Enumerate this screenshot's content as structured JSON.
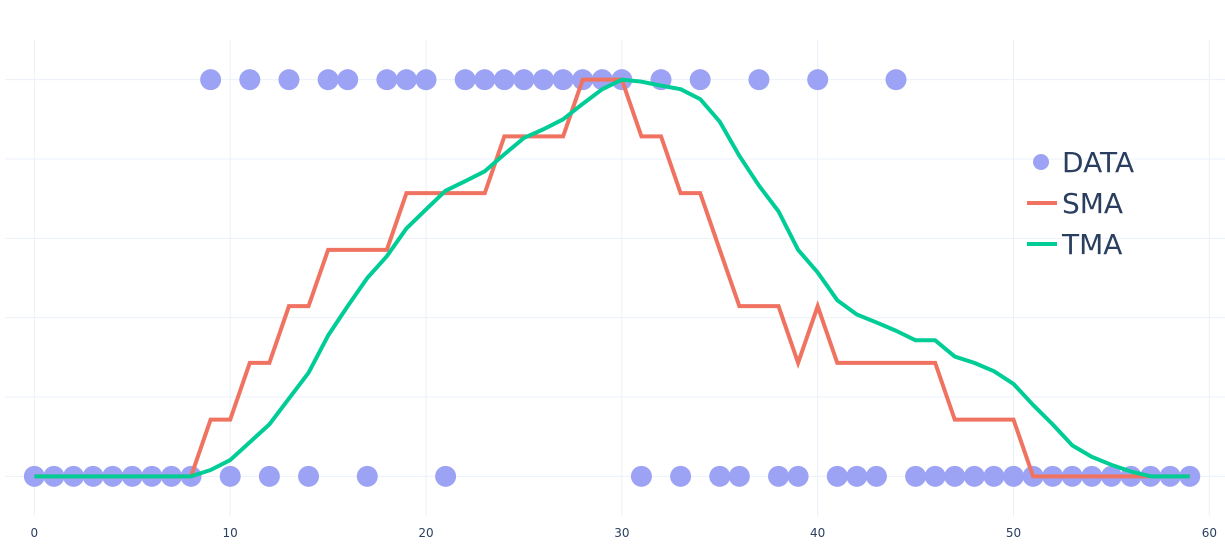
{
  "chart_data": {
    "type": "scatter",
    "xlim": [
      -1.5,
      60.8
    ],
    "ylim": [
      -0.1,
      1.1
    ],
    "x_ticks": [
      0,
      10,
      20,
      30,
      40,
      50,
      60
    ],
    "y_gridlines": [
      0,
      0.2,
      0.4,
      0.6,
      0.8,
      1.0
    ],
    "grid": true,
    "legend_position": "right",
    "colors": {
      "DATA": "#9da3f4",
      "SMA": "#ef7360",
      "TMA": "#00cc96",
      "axis_text": "#2a3f5f",
      "grid": "#ebf0f8"
    },
    "series": [
      {
        "name": "DATA",
        "mode": "markers",
        "x": [
          0,
          1,
          2,
          3,
          4,
          5,
          6,
          7,
          8,
          9,
          10,
          11,
          12,
          13,
          14,
          15,
          16,
          17,
          18,
          19,
          20,
          21,
          22,
          23,
          24,
          25,
          26,
          27,
          28,
          29,
          30,
          31,
          32,
          33,
          34,
          35,
          36,
          37,
          38,
          39,
          40,
          41,
          42,
          43,
          44,
          45,
          46,
          47,
          48,
          49,
          50,
          51,
          52,
          53,
          54,
          55,
          56,
          57,
          58,
          59
        ],
        "y": [
          0,
          0,
          0,
          0,
          0,
          0,
          0,
          0,
          0,
          1,
          0,
          1,
          0,
          1,
          0,
          1,
          1,
          0,
          1,
          1,
          1,
          0,
          1,
          1,
          1,
          1,
          1,
          1,
          1,
          1,
          1,
          0,
          1,
          0,
          1,
          0,
          0,
          1,
          0,
          0,
          1,
          0,
          0,
          0,
          1,
          0,
          0,
          0,
          0,
          0,
          0,
          0,
          0,
          0,
          0,
          0,
          0,
          0,
          0,
          0
        ]
      },
      {
        "name": "SMA",
        "mode": "lines",
        "x": [
          0,
          1,
          2,
          3,
          4,
          5,
          6,
          7,
          8,
          9,
          10,
          11,
          12,
          13,
          14,
          15,
          16,
          17,
          18,
          19,
          20,
          21,
          22,
          23,
          24,
          25,
          26,
          27,
          28,
          29,
          30,
          31,
          32,
          33,
          34,
          35,
          36,
          37,
          38,
          39,
          40,
          41,
          42,
          43,
          44,
          45,
          46,
          47,
          48,
          49,
          50,
          51,
          52,
          53,
          54,
          55,
          56,
          57,
          58,
          59
        ],
        "y": [
          0,
          0,
          0,
          0,
          0,
          0,
          0,
          0,
          0,
          0.143,
          0.143,
          0.286,
          0.286,
          0.429,
          0.429,
          0.571,
          0.571,
          0.571,
          0.571,
          0.714,
          0.714,
          0.714,
          0.714,
          0.714,
          0.857,
          0.857,
          0.857,
          0.857,
          1.0,
          1.0,
          1.0,
          0.857,
          0.857,
          0.714,
          0.714,
          0.571,
          0.429,
          0.429,
          0.429,
          0.286,
          0.429,
          0.286,
          0.286,
          0.286,
          0.286,
          0.286,
          0.286,
          0.143,
          0.143,
          0.143,
          0.143,
          0,
          0,
          0,
          0,
          0,
          0,
          0,
          0,
          0
        ]
      },
      {
        "name": "TMA",
        "mode": "lines",
        "x": [
          0,
          1,
          2,
          3,
          4,
          5,
          6,
          7,
          8,
          9,
          10,
          11,
          12,
          13,
          14,
          15,
          16,
          17,
          18,
          19,
          20,
          21,
          22,
          23,
          24,
          25,
          26,
          27,
          28,
          29,
          30,
          31,
          32,
          33,
          34,
          35,
          36,
          37,
          38,
          39,
          40,
          41,
          42,
          43,
          44,
          45,
          46,
          47,
          48,
          49,
          50,
          51,
          52,
          53,
          54,
          55,
          56,
          57,
          58,
          59
        ],
        "y": [
          0,
          0,
          0,
          0,
          0,
          0,
          0,
          0,
          0,
          0.016,
          0.041,
          0.086,
          0.131,
          0.196,
          0.261,
          0.355,
          0.429,
          0.5,
          0.555,
          0.625,
          0.673,
          0.72,
          0.744,
          0.769,
          0.812,
          0.853,
          0.875,
          0.9,
          0.939,
          0.976,
          1.0,
          0.995,
          0.985,
          0.976,
          0.951,
          0.894,
          0.808,
          0.733,
          0.668,
          0.571,
          0.514,
          0.444,
          0.408,
          0.388,
          0.367,
          0.343,
          0.343,
          0.302,
          0.286,
          0.265,
          0.233,
          0.18,
          0.131,
          0.078,
          0.049,
          0.029,
          0.012,
          0,
          0,
          0
        ]
      }
    ]
  }
}
